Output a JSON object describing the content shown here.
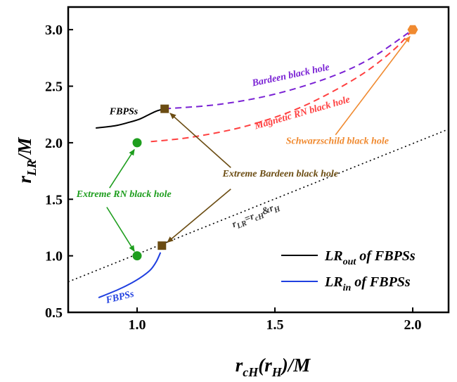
{
  "chart_data": {
    "type": "line",
    "xlabel": {
      "main": "r",
      "sub1": "cH",
      "mid": "(r",
      "sub2": "H",
      "tail": ")/M"
    },
    "ylabel": {
      "main": "r",
      "sub": "LR",
      "tail": "/M"
    },
    "xlim": [
      0.75,
      2.13
    ],
    "ylim": [
      0.5,
      3.2
    ],
    "xticks": [
      1.0,
      1.5,
      2.0
    ],
    "yticks": [
      0.5,
      1.0,
      1.5,
      2.0,
      2.5,
      3.0
    ],
    "xtick_labels": [
      "1.0",
      "1.5",
      "2.0"
    ],
    "ytick_labels": [
      "0.5",
      "1.0",
      "1.5",
      "2.0",
      "2.5",
      "3.0"
    ],
    "series": [
      {
        "name": "LR_out of FBPSs",
        "style": "solid",
        "color": "#000000",
        "x": [
          0.85,
          0.92,
          0.97,
          1.01,
          1.04,
          1.07,
          1.1
        ],
        "y": [
          2.13,
          2.15,
          2.18,
          2.21,
          2.245,
          2.28,
          2.3
        ]
      },
      {
        "name": "LR_in of FBPSs",
        "style": "solid",
        "color": "#1f3fe0",
        "x": [
          0.86,
          0.93,
          0.98,
          1.02,
          1.05,
          1.07,
          1.085
        ],
        "y": [
          0.63,
          0.7,
          0.76,
          0.82,
          0.88,
          0.95,
          1.03
        ]
      },
      {
        "name": "Bardeen black hole",
        "style": "dashed",
        "color": "#7a22d4",
        "x": [
          1.1,
          1.3,
          1.5,
          1.7,
          1.85,
          2.0
        ],
        "y": [
          2.3,
          2.34,
          2.43,
          2.58,
          2.75,
          3.0
        ]
      },
      {
        "name": "Magnetic RN black hole",
        "style": "dashed",
        "color": "#ff4040",
        "x": [
          1.05,
          1.2,
          1.4,
          1.6,
          1.8,
          1.93,
          2.0
        ],
        "y": [
          2.01,
          2.05,
          2.15,
          2.32,
          2.58,
          2.82,
          3.0
        ]
      },
      {
        "name": "r_LR = r_cH & r_H",
        "style": "dotted",
        "color": "#000000",
        "x": [
          0.75,
          2.13
        ],
        "y": [
          0.77,
          2.12
        ]
      }
    ],
    "points": [
      {
        "name": "Extreme RN black hole (upper)",
        "x": 1.0,
        "y": 2.0,
        "marker": "circle",
        "color": "#1e9e1e"
      },
      {
        "name": "Extreme RN black hole (lower)",
        "x": 1.0,
        "y": 1.0,
        "marker": "circle",
        "color": "#1e9e1e"
      },
      {
        "name": "Extreme Bardeen black hole (upper)",
        "x": 1.1,
        "y": 2.3,
        "marker": "square",
        "color": "#6b4c12"
      },
      {
        "name": "Extreme Bardeen black hole (lower)",
        "x": 1.09,
        "y": 1.09,
        "marker": "square",
        "color": "#6b4c12"
      },
      {
        "name": "Schwarzschild black hole",
        "x": 2.0,
        "y": 3.0,
        "marker": "hexagon",
        "color": "#f08a30"
      }
    ],
    "annotations": [
      {
        "text": "FBPSs",
        "color": "#000000",
        "x": 0.9,
        "y": 2.25,
        "angle": 0,
        "style": "normal",
        "size": 17
      },
      {
        "text": "FBPSs",
        "color": "#1f3fe0",
        "x": 0.89,
        "y": 0.58,
        "angle": -14,
        "style": "italic",
        "size": 17
      },
      {
        "text": "Bardeen black hole",
        "color": "#7a22d4",
        "x": 1.42,
        "y": 2.5,
        "angle": -12,
        "style": "italic",
        "size": 14
      },
      {
        "text": "Magnetic RN black hole",
        "color": "#ff4040",
        "x": 1.43,
        "y": 2.12,
        "angle": -16,
        "style": "italic",
        "size": 14
      },
      {
        "text": "Schwarzschild black hole",
        "color": "#f08a30",
        "x": 1.54,
        "y": 1.99,
        "angle": 0,
        "style": "italic",
        "size": 14
      },
      {
        "text": "Extreme Bardeen black hole",
        "color": "#6b4c12",
        "x": 1.31,
        "y": 1.7,
        "angle": 0,
        "style": "italic",
        "size": 14
      },
      {
        "text": "Extreme RN black hole",
        "color": "#1e9e1e",
        "x": 0.78,
        "y": 1.52,
        "angle": 0,
        "style": "italic",
        "size": 14
      },
      {
        "text": "r",
        "sub1": "LR",
        "mid": "=r",
        "sub2": "cH",
        "tail": "&r",
        "sub3": "H",
        "color": "#333333",
        "x": 1.35,
        "y": 1.25,
        "angle": -23
      }
    ],
    "arrows": [
      {
        "name": "orange-to-schwarzschild",
        "color": "#f08a30",
        "from": [
          1.72,
          2.07
        ],
        "to": [
          1.99,
          2.94
        ]
      },
      {
        "name": "green-to-upper-rn",
        "color": "#1e9e1e",
        "from": [
          0.9,
          1.6
        ],
        "to": [
          0.99,
          1.94
        ]
      },
      {
        "name": "green-to-lower-rn",
        "color": "#1e9e1e",
        "from": [
          0.89,
          1.43
        ],
        "to": [
          0.99,
          1.04
        ]
      },
      {
        "name": "brown-to-upper-bardeen",
        "color": "#6b4c12",
        "from": [
          1.34,
          1.78
        ],
        "to": [
          1.12,
          2.26
        ]
      },
      {
        "name": "brown-to-lower-bardeen",
        "color": "#6b4c12",
        "from": [
          1.34,
          1.59
        ],
        "to": [
          1.11,
          1.12
        ]
      }
    ],
    "legend": {
      "position": "bottom-right",
      "entries": [
        {
          "color": "#000000",
          "main": "LR",
          "sub": "out",
          "tail": " of FBPSs"
        },
        {
          "color": "#1f3fe0",
          "main": "LR",
          "sub": "in",
          "tail": " of FBPSs"
        }
      ]
    }
  }
}
